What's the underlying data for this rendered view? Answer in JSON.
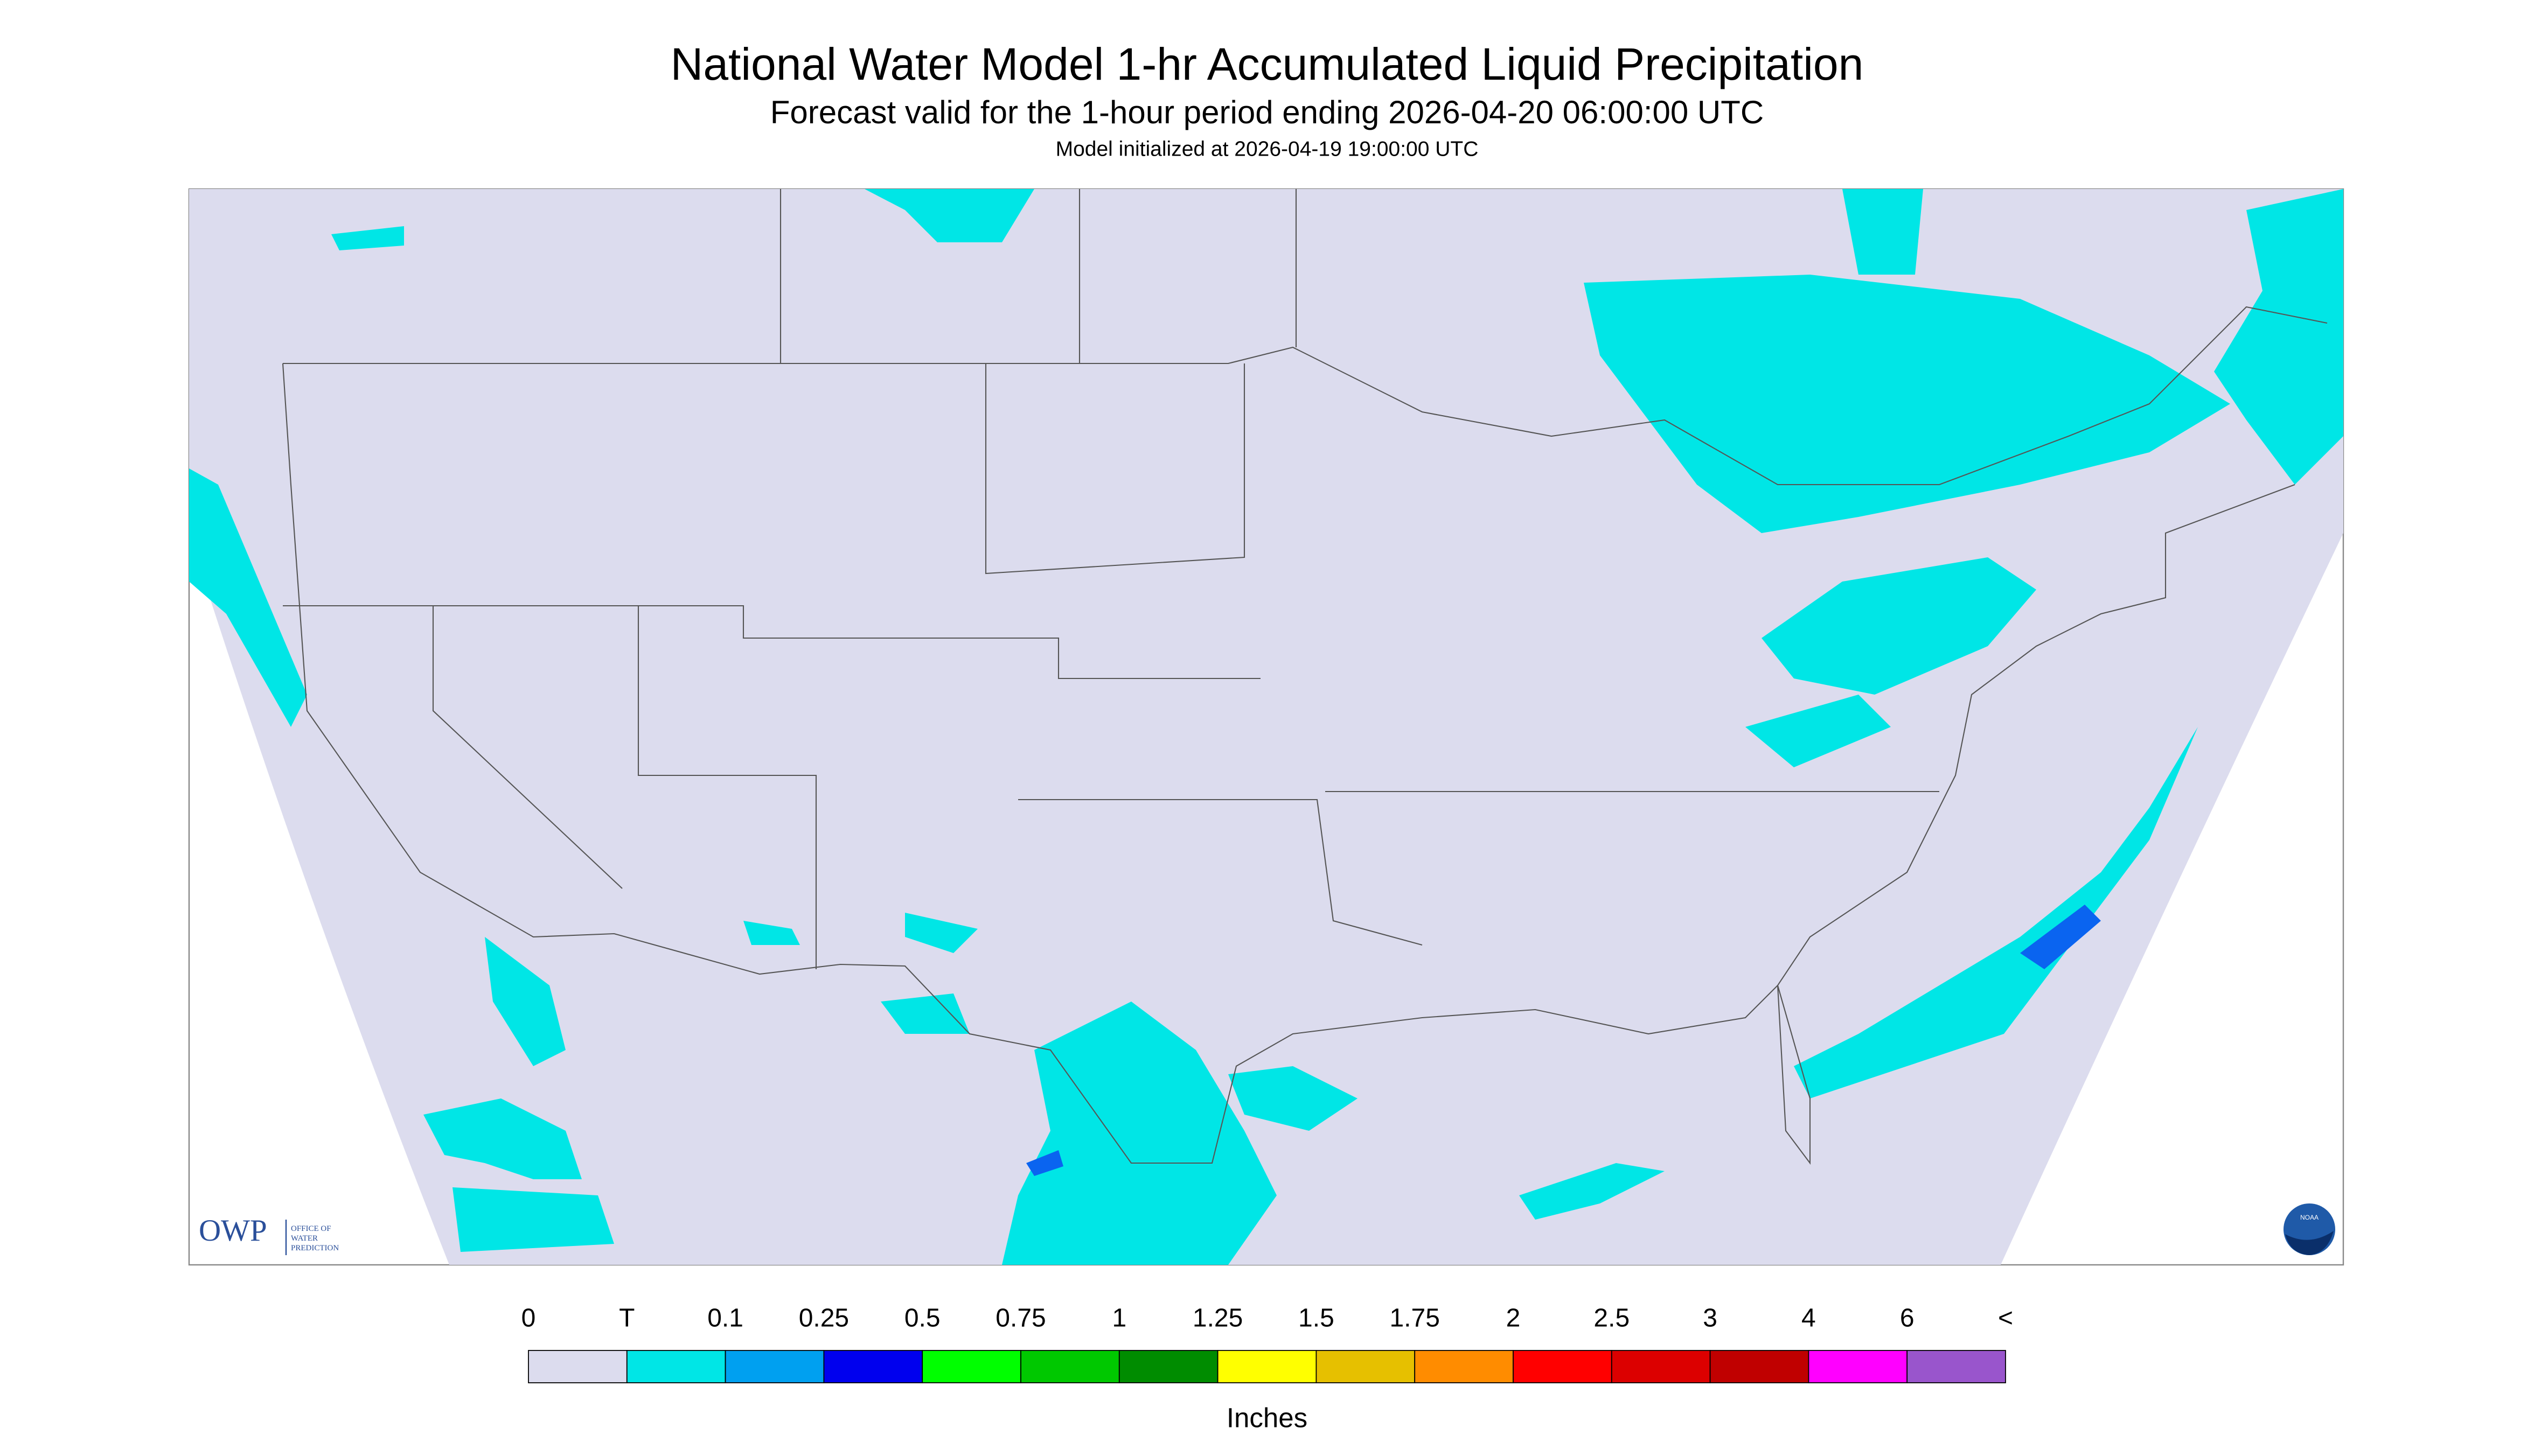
{
  "title": "National Water Model 1-hr Accumulated Liquid Precipitation",
  "subtitle": "Forecast valid for the 1-hour period ending 2026-04-20 06:00:00 UTC",
  "initialized": "Model initialized at 2026-04-19 19:00:00 UTC",
  "legend": {
    "labels": [
      "0",
      "T",
      "0.1",
      "0.25",
      "0.5",
      "0.75",
      "1",
      "1.25",
      "1.5",
      "1.75",
      "2",
      "2.5",
      "3",
      "4",
      "6",
      "<"
    ],
    "colors": [
      "#dcdcee",
      "#00e6e6",
      "#00a0f0",
      "#0000ee",
      "#00ff00",
      "#00c800",
      "#008c00",
      "#ffff00",
      "#e6c000",
      "#ff8c00",
      "#ff0000",
      "#dc0000",
      "#c00000",
      "#ff00ff",
      "#9955cc"
    ],
    "units": "Inches"
  },
  "logo": {
    "owp": "OWP",
    "office": [
      "OFFICE OF",
      "WATER",
      "PREDICTION"
    ]
  },
  "noaa": "NOAA"
}
